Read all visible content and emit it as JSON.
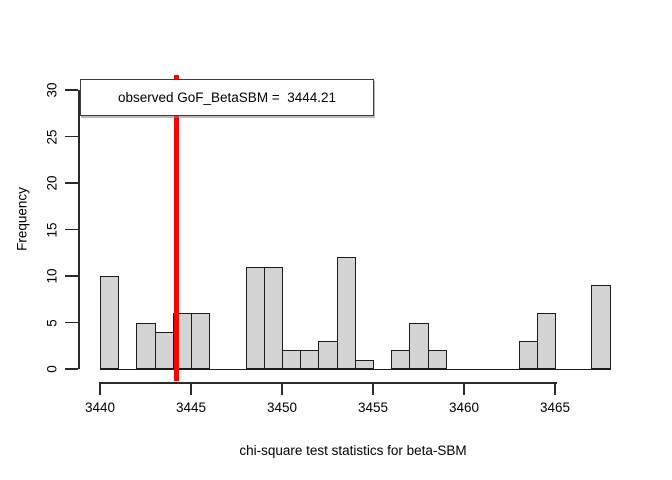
{
  "figure": {
    "background": "#ffffff",
    "bar_fill": "#d3d3d3",
    "bar_border": "#1c1c1c",
    "axis_color": "#2a2a2a",
    "observed_line_color": "#ff0000"
  },
  "legend": {
    "label": "observed GoF_BetaSBM =  3444.21"
  },
  "chart_data": {
    "type": "bar",
    "title": "",
    "xlabel": "chi-square test statistics for beta-SBM",
    "ylabel": "Frequency",
    "bin_start": 3440,
    "bin_width": 1,
    "frequencies": [
      10,
      0,
      5,
      4,
      6,
      6,
      0,
      0,
      11,
      11,
      2,
      2,
      3,
      12,
      1,
      0,
      2,
      5,
      2,
      0,
      0,
      0,
      0,
      3,
      6,
      0,
      0,
      9
    ],
    "x_ticks": [
      3440,
      3445,
      3450,
      3455,
      3460,
      3465
    ],
    "y_ticks": [
      0,
      5,
      10,
      15,
      20,
      25,
      30
    ],
    "xlim": [
      3438.9,
      3469.1
    ],
    "ylim": [
      0,
      30
    ],
    "grid": false,
    "legend_position": "top-left",
    "observed_value": 3444.21,
    "observed_label": "observed GoF_BetaSBM =  3444.21",
    "total_count": 100
  }
}
